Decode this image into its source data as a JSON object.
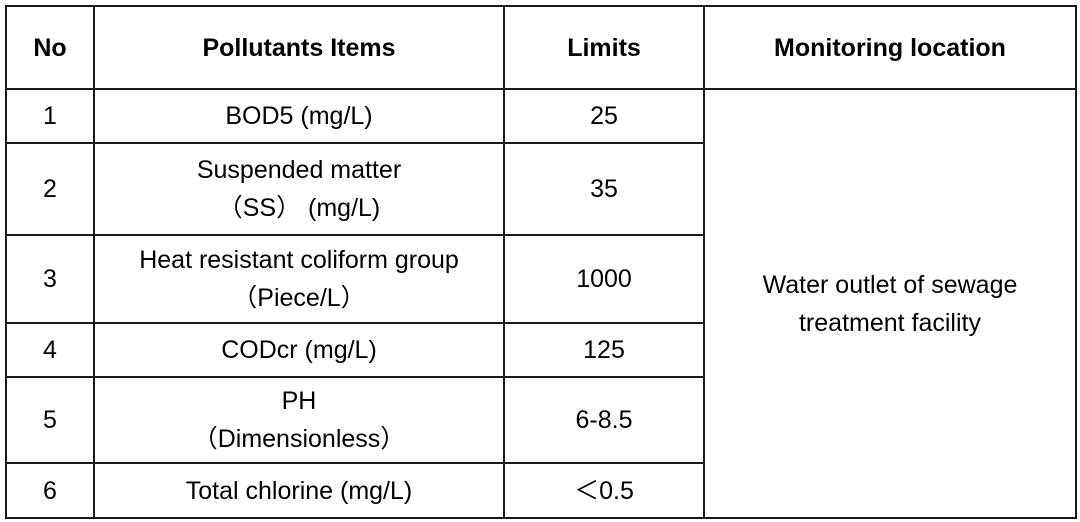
{
  "table": {
    "headers": {
      "no": "No",
      "item": "Pollutants Items",
      "limits": "Limits",
      "location": "Monitoring location"
    },
    "rows": [
      {
        "no": "1",
        "item_lines": [
          "BOD5 (mg/L)"
        ],
        "limit": "25"
      },
      {
        "no": "2",
        "item_lines": [
          "Suspended matter",
          "（SS） (mg/L)"
        ],
        "limit": "35"
      },
      {
        "no": "3",
        "item_lines": [
          "Heat resistant coliform group",
          "（Piece/L）"
        ],
        "limit": "1000"
      },
      {
        "no": "4",
        "item_lines": [
          "CODcr (mg/L)"
        ],
        "limit": "125"
      },
      {
        "no": "5",
        "item_lines": [
          "PH",
          "（Dimensionless）"
        ],
        "limit": "6-8.5"
      },
      {
        "no": "6",
        "item_lines": [
          "Total chlorine (mg/L)"
        ],
        "limit": "＜0.5"
      }
    ],
    "location_lines": [
      "Water outlet of sewage",
      "treatment facility"
    ]
  }
}
